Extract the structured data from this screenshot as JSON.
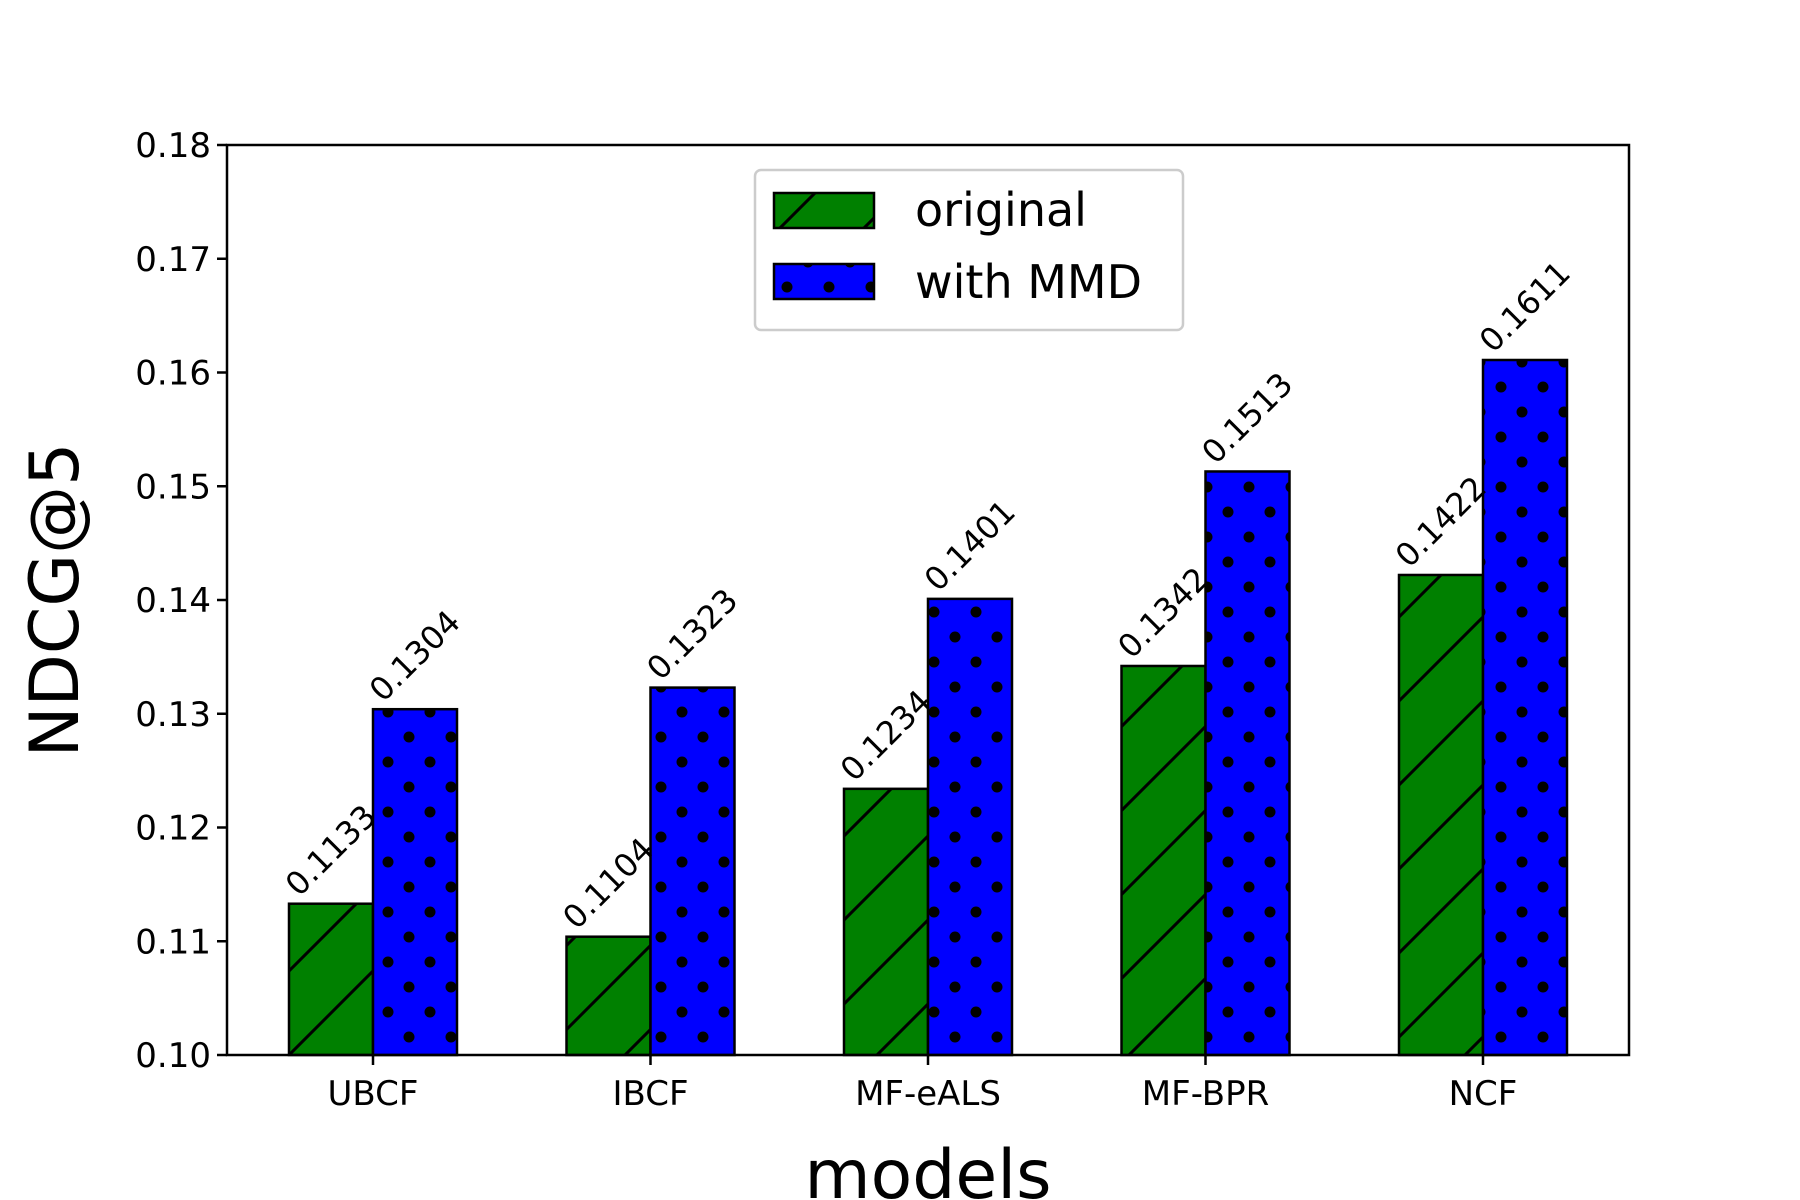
{
  "chart_data": {
    "type": "bar",
    "xlabel": "models",
    "ylabel": "NDCG@5",
    "categories": [
      "UBCF",
      "IBCF",
      "MF-eALS",
      "MF-BPR",
      "NCF"
    ],
    "series": [
      {
        "name": "original",
        "values": [
          0.1133,
          0.1104,
          0.1234,
          0.1342,
          0.1422
        ],
        "color": "#008000",
        "hatch": "diagonal"
      },
      {
        "name": "with MMD",
        "values": [
          0.1304,
          0.1323,
          0.1401,
          0.1513,
          0.1611
        ],
        "color": "#0000ff",
        "hatch": "dots"
      }
    ],
    "value_labels": {
      "original": [
        "0.1133",
        "0.1104",
        "0.1234",
        "0.1342",
        "0.1422"
      ],
      "with MMD": [
        "0.1304",
        "0.1323",
        "0.1401",
        "0.1513",
        "0.1611"
      ]
    },
    "ylim": [
      0.1,
      0.18
    ],
    "yticks": [
      "0.10",
      "0.11",
      "0.12",
      "0.13",
      "0.14",
      "0.15",
      "0.16",
      "0.17",
      "0.18"
    ],
    "grid": false,
    "legend_position": "top-center"
  }
}
